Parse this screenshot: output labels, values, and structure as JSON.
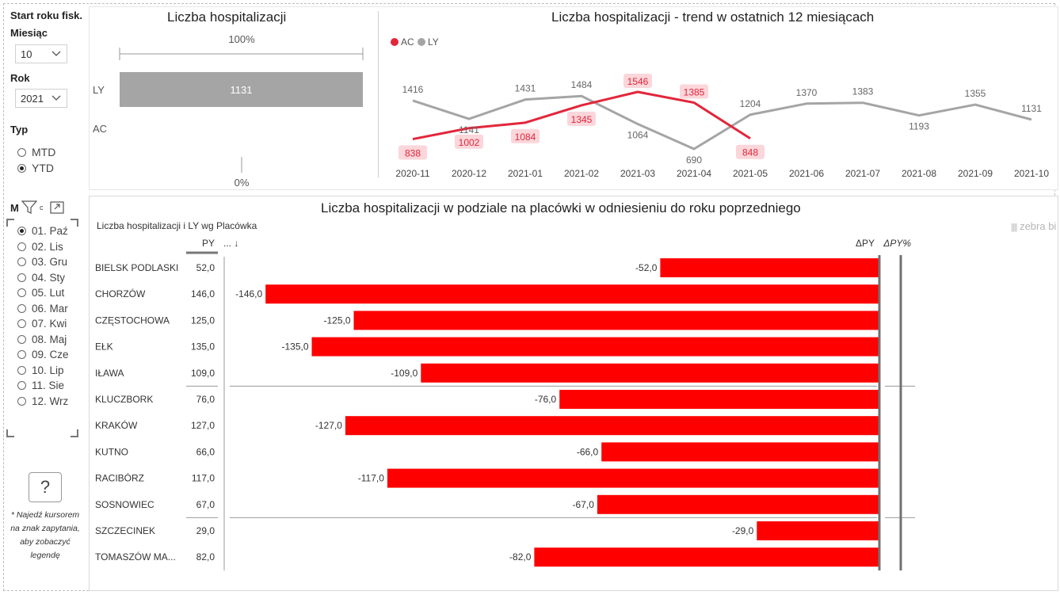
{
  "slicers": {
    "fiscal_start_title": "Start roku fisk.",
    "month_title": "Miesiąc",
    "month_value": "10",
    "year_title": "Rok",
    "year_value": "2021",
    "type_title": "Typ",
    "type_options": [
      {
        "label": "MTD",
        "selected": false
      },
      {
        "label": "YTD",
        "selected": true
      }
    ],
    "month_list_header": "M",
    "month_list_header_suffix": "c",
    "month_list": [
      {
        "label": "01. Paź",
        "selected": true
      },
      {
        "label": "02. Lis",
        "selected": false
      },
      {
        "label": "03. Gru",
        "selected": false
      },
      {
        "label": "04. Sty",
        "selected": false
      },
      {
        "label": "05. Lut",
        "selected": false
      },
      {
        "label": "06. Mar",
        "selected": false
      },
      {
        "label": "07. Kwi",
        "selected": false
      },
      {
        "label": "08. Maj",
        "selected": false
      },
      {
        "label": "09. Cze",
        "selected": false
      },
      {
        "label": "10. Lip",
        "selected": false
      },
      {
        "label": "11. Sie",
        "selected": false
      },
      {
        "label": "12. Wrz",
        "selected": false
      }
    ],
    "help_symbol": "?",
    "help_note": "* Najedź kursorem na znak zapytania, aby zobaczyć legendę"
  },
  "colors": {
    "ac": "#e3263b",
    "ly": "#a5a5a5",
    "negative_bar": "#ff0000",
    "label_bg": "#fbd6da",
    "axis": "#707070"
  },
  "watermark": "zebra bi",
  "chart_data": [
    {
      "type": "bar",
      "title": "Liczba hospitalizacji",
      "categories": [
        "LY",
        "AC"
      ],
      "values": [
        1131,
        null
      ],
      "scale_top_label": "100%",
      "scale_bottom_label": "0%"
    },
    {
      "type": "line",
      "title": "Liczba hospitalizacji - trend w ostatnich 12 miesiącach",
      "legend_position": "top-left",
      "x": [
        "2020-11",
        "2020-12",
        "2021-01",
        "2021-02",
        "2021-03",
        "2021-04",
        "2021-05",
        "2021-06",
        "2021-07",
        "2021-08",
        "2021-09",
        "2021-10"
      ],
      "series": [
        {
          "name": "AC",
          "values": [
            838,
            1002,
            1084,
            1345,
            1546,
            1385,
            848,
            null,
            null,
            null,
            null,
            null
          ]
        },
        {
          "name": "LY",
          "values": [
            1416,
            1141,
            1431,
            1484,
            1064,
            690,
            1204,
            1370,
            1383,
            1193,
            1355,
            1131
          ]
        }
      ]
    },
    {
      "type": "bar",
      "title": "Liczba hospitalizacji w podziale na placówki w odniesieniu do roku poprzedniego",
      "subtitle": "Liczba hospitalizacji i LY wg Placówka",
      "column_headers": {
        "py": "PY",
        "sort": "... ↓",
        "delta": "ΔPY",
        "delta_pct": "ΔPY%"
      },
      "categories": [
        "BIELSK PODLASKI",
        "CHORZÓW",
        "CZĘSTOCHOWA",
        "EŁK",
        "IŁAWA",
        "KLUCZBORK",
        "KRAKÓW",
        "KUTNO",
        "RACIBÓRZ",
        "SOSNOWIEC",
        "SZCZECINEK",
        "TOMASZÓW MA..."
      ],
      "py_values": [
        "52,0",
        "146,0",
        "125,0",
        "135,0",
        "109,0",
        "76,0",
        "127,0",
        "66,0",
        "117,0",
        "67,0",
        "29,0",
        "82,0"
      ],
      "delta_values": [
        -52,
        -146,
        -125,
        -135,
        -109,
        -76,
        -127,
        -66,
        -117,
        -67,
        -29,
        -82
      ],
      "delta_labels": [
        "-52,0",
        "-146,0",
        "-125,0",
        "-135,0",
        "-109,0",
        "-76,0",
        "-127,0",
        "-66,0",
        "-117,0",
        "-67,0",
        "-29,0",
        "-82,0"
      ]
    }
  ]
}
